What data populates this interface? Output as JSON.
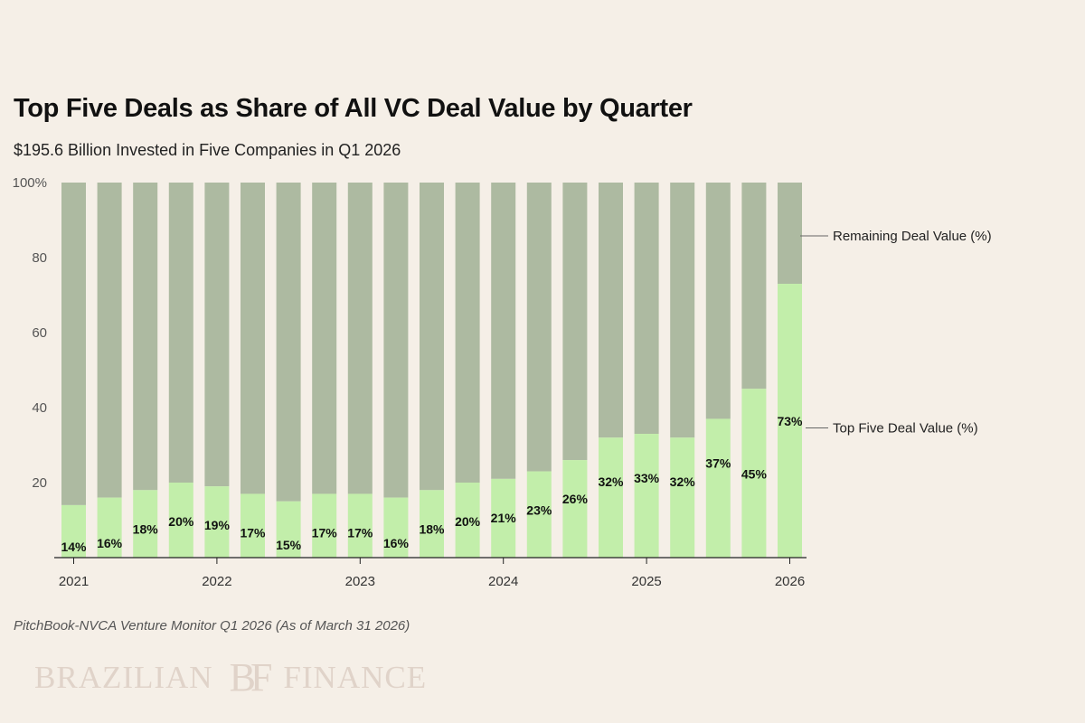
{
  "title": "Top Five Deals as Share of All VC Deal Value by Quarter",
  "subtitle": "$195.6 Billion Invested in Five Companies in Q1 2026",
  "source": "PitchBook-NVCA Venture Monitor Q1 2026 (As of March 31 2026)",
  "brand": {
    "left_text": "BRAZILIAN",
    "monogram": "BF",
    "right_text": "FINANCE",
    "color": "#e0d3c9"
  },
  "chart_data": {
    "type": "bar",
    "stacked": true,
    "categories": [
      "Q1 2021",
      "Q2 2021",
      "Q3 2021",
      "Q4 2021",
      "Q1 2022",
      "Q2 2022",
      "Q3 2022",
      "Q4 2022",
      "Q1 2023",
      "Q2 2023",
      "Q3 2023",
      "Q4 2023",
      "Q1 2024",
      "Q2 2024",
      "Q3 2024",
      "Q4 2024",
      "Q1 2025",
      "Q2 2025",
      "Q3 2025",
      "Q4 2025",
      "Q1 2026"
    ],
    "series": [
      {
        "name": "Top Five Deal Value (%)",
        "color": "#c2eeaa",
        "values": [
          14,
          16,
          18,
          20,
          19,
          17,
          15,
          17,
          17,
          16,
          18,
          20,
          21,
          23,
          26,
          32,
          33,
          32,
          37,
          45,
          73
        ],
        "data_labels": [
          "14%",
          "16%",
          "18%",
          "20%",
          "19%",
          "17%",
          "15%",
          "17%",
          "17%",
          "16%",
          "18%",
          "20%",
          "21%",
          "23%",
          "26%",
          "32%",
          "33%",
          "32%",
          "37%",
          "45%",
          "73%"
        ]
      },
      {
        "name": "Remaining Deal Value (%)",
        "color": "#adbaa1",
        "values": [
          86,
          84,
          82,
          80,
          81,
          83,
          85,
          83,
          83,
          84,
          82,
          80,
          79,
          77,
          74,
          68,
          67,
          68,
          63,
          55,
          27
        ]
      }
    ],
    "x_tick_labels": [
      "2021",
      "2022",
      "2023",
      "2024",
      "2025",
      "2026"
    ],
    "y_tick_labels": [
      "100%",
      "80",
      "60",
      "40",
      "20"
    ],
    "y_ticks": [
      100,
      80,
      60,
      40,
      20
    ],
    "ylim": [
      0,
      100
    ],
    "grid": false,
    "legend": "direct labels, right"
  }
}
